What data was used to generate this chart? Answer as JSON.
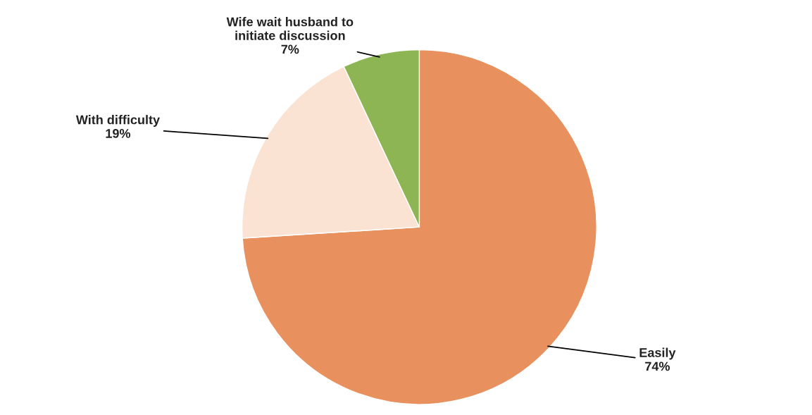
{
  "chart_data": {
    "type": "pie",
    "categories": [
      "Easily",
      "With difficulty",
      "Wife wait husband to\ninitiate discussion"
    ],
    "values": [
      74,
      19,
      7
    ],
    "value_labels": [
      "74%",
      "19%",
      "7%"
    ],
    "colors": [
      "#e8915f",
      "#fbe3d4",
      "#8db554"
    ]
  }
}
